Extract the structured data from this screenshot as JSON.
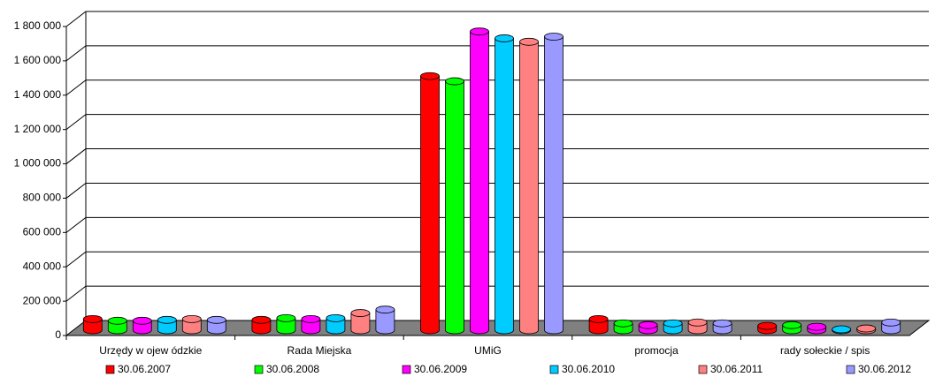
{
  "chart_data": {
    "type": "bar3d",
    "categories": [
      "Urzędy w ojew ódzkie",
      "Rada Miejska",
      "UMiG",
      "promocja",
      "rady sołeckie / spis"
    ],
    "series": [
      {
        "name": "30.06.2007",
        "color": "#ff0000",
        "values": [
          65000,
          60000,
          1480000,
          65000,
          25000
        ]
      },
      {
        "name": "30.06.2008",
        "color": "#00ff00",
        "values": [
          55000,
          70000,
          1450000,
          40000,
          30000
        ]
      },
      {
        "name": "30.06.2009",
        "color": "#ff00ff",
        "values": [
          55000,
          65000,
          1740000,
          30000,
          20000
        ]
      },
      {
        "name": "30.06.2010",
        "color": "#00ccff",
        "values": [
          60000,
          70000,
          1700000,
          40000,
          5000
        ]
      },
      {
        "name": "30.06.2011",
        "color": "#ff8080",
        "values": [
          65000,
          100000,
          1680000,
          45000,
          10000
        ]
      },
      {
        "name": "30.06.2012",
        "color": "#9999ff",
        "values": [
          60000,
          120000,
          1710000,
          40000,
          45000
        ]
      }
    ],
    "ylim": [
      0,
      1800000
    ],
    "yticks": [
      0,
      {
        "value": 200000,
        "label": "200 000"
      },
      {
        "value": 400000,
        "label": "400 000"
      },
      {
        "value": 600000,
        "label": "600 000"
      },
      {
        "value": 800000,
        "label": "800 000"
      },
      {
        "value": 1000000,
        "label": "1 000 000"
      },
      {
        "value": 1200000,
        "label": "1 200 000"
      },
      {
        "value": 1400000,
        "label": "1 400 000"
      },
      {
        "value": 1600000,
        "label": "1 600 000"
      },
      {
        "value": 1800000,
        "label": "1 800 000"
      }
    ],
    "grid": true,
    "legend": "bottom"
  }
}
